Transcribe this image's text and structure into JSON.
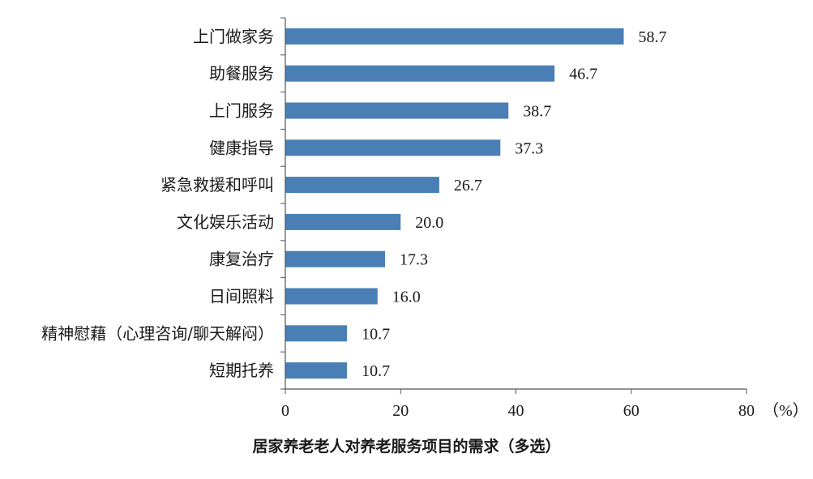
{
  "chart_data": {
    "type": "bar",
    "orientation": "horizontal",
    "categories": [
      "上门做家务",
      "助餐服务",
      "上门服务",
      "健康指导",
      "紧急救援和呼叫",
      "文化娱乐活动",
      "康复治疗",
      "日间照料",
      "精神慰藉（心理咨询/聊天解闷）",
      "短期托养"
    ],
    "values": [
      58.7,
      46.7,
      38.7,
      37.3,
      26.7,
      20.0,
      17.3,
      16.0,
      10.7,
      10.7
    ],
    "value_labels": [
      "58.7",
      "46.7",
      "38.7",
      "37.3",
      "26.7",
      "20.0",
      "17.3",
      "16.0",
      "10.7",
      "10.7"
    ],
    "xlim": [
      0,
      80
    ],
    "x_ticks": [
      "0",
      "20",
      "40",
      "60",
      "80"
    ],
    "x_unit": "（%）",
    "title": "居家养老老人对养老服务项目的需求（多选）",
    "bar_color": "#4a7fb5",
    "grid": false,
    "legend": "none"
  }
}
